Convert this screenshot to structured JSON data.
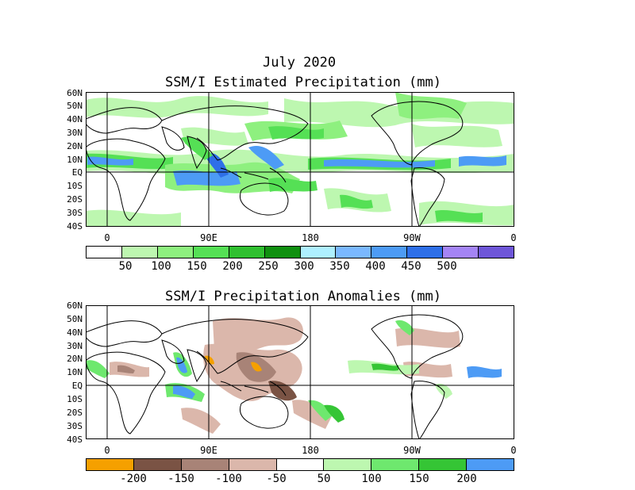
{
  "header": {
    "title": "July 2020"
  },
  "panel_top": {
    "title": "SSM/I Estimated Precipitation (mm)",
    "lat_labels": [
      "60N",
      "50N",
      "40N",
      "30N",
      "20N",
      "10N",
      "EQ",
      "10S",
      "20S",
      "30S",
      "40S"
    ],
    "lon_labels": [
      "0",
      "90E",
      "180",
      "90W",
      "0"
    ],
    "colorbar": {
      "colors": [
        "#ffffff",
        "#bdf7b0",
        "#8ef07f",
        "#55e055",
        "#30c030",
        "#109010",
        "#aef0ff",
        "#7ab8ff",
        "#4d9bf5",
        "#2e6fe8",
        "#a484f5",
        "#6e56d8"
      ],
      "labels": [
        "50",
        "100",
        "150",
        "200",
        "250",
        "300",
        "350",
        "400",
        "450",
        "500"
      ]
    }
  },
  "panel_bottom": {
    "title": "SSM/I Precipitation Anomalies (mm)",
    "lat_labels": [
      "60N",
      "50N",
      "40N",
      "30N",
      "20N",
      "10N",
      "EQ",
      "10S",
      "20S",
      "30S",
      "40S"
    ],
    "lon_labels": [
      "0",
      "90E",
      "180",
      "90W",
      "0"
    ],
    "colorbar": {
      "colors": [
        "#f5a000",
        "#7a5344",
        "#a88377",
        "#dbb7ab",
        "#ffffff",
        "#bdf7b0",
        "#6ee86e",
        "#35c535",
        "#4d9bf5"
      ],
      "labels": [
        "-200",
        "-150",
        "-100",
        "-50",
        "50",
        "100",
        "150",
        "200"
      ]
    }
  }
}
